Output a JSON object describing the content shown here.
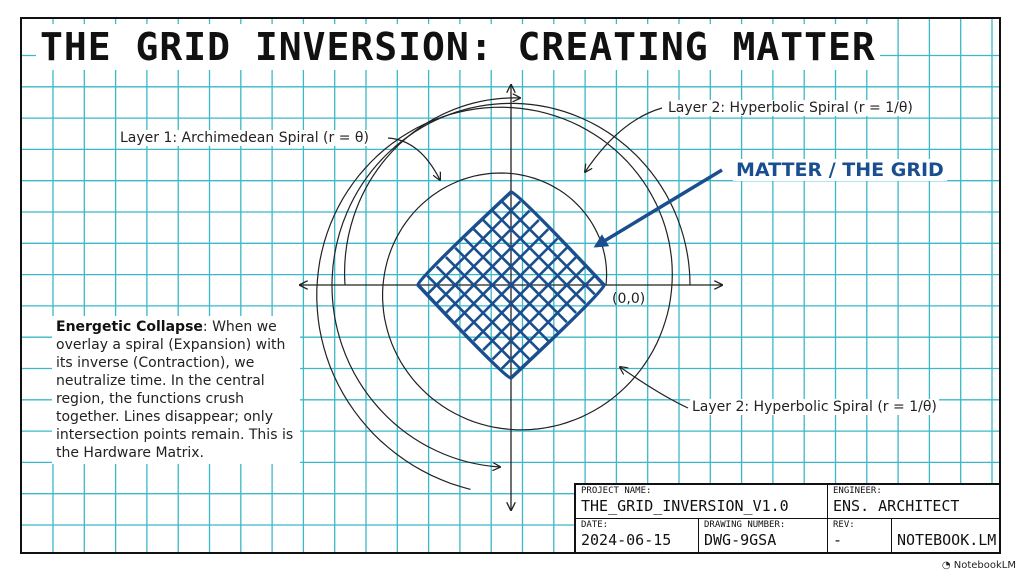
{
  "title": "THE GRID INVERSION: CREATING MATTER",
  "labels": {
    "layer1": "Layer 1: Archimedean Spiral (r = θ)",
    "layer2_top": "Layer 2: Hyperbolic Spiral (r = 1/θ)",
    "layer2_bottom": "Layer 2: Hyperbolic Spiral (r = 1/θ)",
    "matter": "MATTER / THE GRID",
    "origin": "(0,0)"
  },
  "description": {
    "heading": "Energetic Collapse",
    "text": ": When we overlay a spiral (Expansion) with its inverse (Contraction), we neutralize time. In the central region, the functions crush together. Lines disappear; only intersection points remain. This is the Hardware Matrix."
  },
  "title_block": {
    "project_name_label": "PROJECT NAME:",
    "project_name": "THE_GRID_INVERSION_V1.0",
    "engineer_label": "ENGINEER:",
    "engineer": "ENS. ARCHITECT",
    "date_label": "DATE:",
    "date": "2024-06-15",
    "drawing_number_label": "DRAWING NUMBER:",
    "drawing_number": "DWG-9GSA",
    "rev_label": "REV:",
    "rev": "-",
    "brand": "NOTEBOOK.LM"
  },
  "footer": "NotebookLM",
  "colors": {
    "grid": "#3bb8c9",
    "matter": "#1a4f8f",
    "ink": "#111111"
  }
}
